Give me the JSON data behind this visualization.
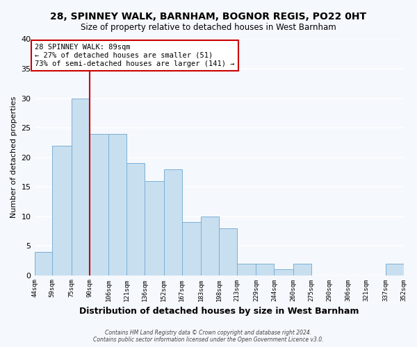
{
  "title": "28, SPINNEY WALK, BARNHAM, BOGNOR REGIS, PO22 0HT",
  "subtitle": "Size of property relative to detached houses in West Barnham",
  "xlabel": "Distribution of detached houses by size in West Barnham",
  "ylabel": "Number of detached properties",
  "bar_color": "#c8dff0",
  "bar_edge_color": "#7bafd4",
  "background_color": "#f5f8fc",
  "grid_color": "#ffffff",
  "bin_edges": [
    44,
    59,
    75,
    90,
    106,
    121,
    136,
    152,
    167,
    183,
    198,
    213,
    229,
    244,
    260,
    275,
    290,
    306,
    321,
    337,
    352
  ],
  "bin_labels": [
    "44sqm",
    "59sqm",
    "75sqm",
    "90sqm",
    "106sqm",
    "121sqm",
    "136sqm",
    "152sqm",
    "167sqm",
    "183sqm",
    "198sqm",
    "213sqm",
    "229sqm",
    "244sqm",
    "260sqm",
    "275sqm",
    "290sqm",
    "306sqm",
    "321sqm",
    "337sqm",
    "352sqm"
  ],
  "counts": [
    4,
    22,
    30,
    24,
    24,
    19,
    16,
    18,
    9,
    10,
    8,
    2,
    2,
    1,
    2,
    0,
    0,
    0,
    0,
    2
  ],
  "ylim": [
    0,
    40
  ],
  "yticks": [
    0,
    5,
    10,
    15,
    20,
    25,
    30,
    35,
    40
  ],
  "vline_x": 90,
  "vline_color": "#cc0000",
  "annotation_title": "28 SPINNEY WALK: 89sqm",
  "annotation_line1": "← 27% of detached houses are smaller (51)",
  "annotation_line2": "73% of semi-detached houses are larger (141) →",
  "annotation_box_edge": "#cc0000",
  "footer1": "Contains HM Land Registry data © Crown copyright and database right 2024.",
  "footer2": "Contains public sector information licensed under the Open Government Licence v3.0."
}
